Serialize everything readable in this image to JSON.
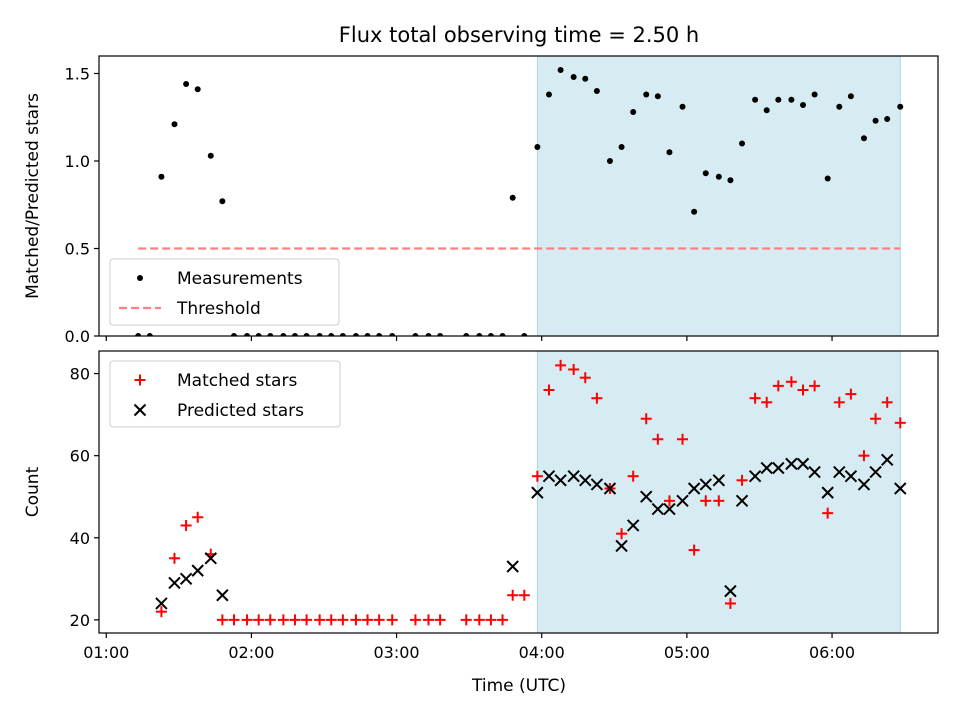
{
  "figure": {
    "title": "Flux total observing time = 2.50 h",
    "xlabel": "Time (UTC)",
    "xticks": [
      "01:00",
      "02:00",
      "03:00",
      "04:00",
      "05:00",
      "06:00"
    ]
  },
  "colors": {
    "shade": "#add8e6",
    "threshold": "#ff8080",
    "matched": "#ff0000",
    "predicted": "#000000",
    "measurements": "#000000"
  },
  "chart_data": [
    {
      "type": "scatter",
      "ylabel": "Matched/Predicted stars",
      "xlim": [
        0.95,
        6.73
      ],
      "ylim": [
        0.0,
        1.6
      ],
      "yticks": [
        0.0,
        0.5,
        1.0,
        1.5
      ],
      "ytick_labels": [
        "0.0",
        "0.5",
        "1.0",
        "1.5"
      ],
      "shaded_region": [
        3.97,
        6.47
      ],
      "threshold": {
        "name": "Threshold",
        "value": 0.5,
        "x_range": [
          1.22,
          6.47
        ]
      },
      "legend": {
        "placement": "lower-left",
        "entries": [
          "Measurements",
          "Threshold"
        ]
      },
      "series": [
        {
          "name": "Measurements",
          "x": [
            1.22,
            1.3,
            1.38,
            1.47,
            1.55,
            1.63,
            1.72,
            1.8,
            1.88,
            1.97,
            2.05,
            2.13,
            2.22,
            2.3,
            2.38,
            2.47,
            2.55,
            2.63,
            2.72,
            2.8,
            2.88,
            2.97,
            3.13,
            3.22,
            3.3,
            3.48,
            3.57,
            3.65,
            3.73,
            3.8,
            3.88,
            3.97,
            4.05,
            4.13,
            4.22,
            4.3,
            4.38,
            4.47,
            4.55,
            4.63,
            4.72,
            4.8,
            4.88,
            4.97,
            5.05,
            5.13,
            5.22,
            5.3,
            5.38,
            5.47,
            5.55,
            5.63,
            5.72,
            5.8,
            5.88,
            5.97,
            6.05,
            6.13,
            6.22,
            6.3,
            6.38,
            6.47
          ],
          "y": [
            0,
            0,
            0.91,
            1.21,
            1.44,
            1.41,
            1.03,
            0.77,
            0,
            0,
            0,
            0,
            0,
            0,
            0,
            0,
            0,
            0,
            0,
            0,
            0,
            0,
            0,
            0,
            0,
            0,
            0,
            0,
            0,
            0.79,
            0,
            1.08,
            1.38,
            1.52,
            1.48,
            1.47,
            1.4,
            1.0,
            1.08,
            1.28,
            1.38,
            1.37,
            1.05,
            1.31,
            0.71,
            0.93,
            0.91,
            0.89,
            1.1,
            1.35,
            1.29,
            1.35,
            1.35,
            1.32,
            1.38,
            0.9,
            1.31,
            1.37,
            1.13,
            1.23,
            1.24,
            1.31
          ]
        }
      ]
    },
    {
      "type": "scatter",
      "ylabel": "Count",
      "xlabel": "Time (UTC)",
      "xlim": [
        0.95,
        6.73
      ],
      "ylim": [
        16.8,
        85.5
      ],
      "yticks": [
        20,
        40,
        60,
        80
      ],
      "ytick_labels": [
        "20",
        "40",
        "60",
        "80"
      ],
      "shaded_region": [
        3.97,
        6.47
      ],
      "legend": {
        "placement": "top-left",
        "entries": [
          "Matched stars",
          "Predicted stars"
        ]
      },
      "series": [
        {
          "name": "Matched stars",
          "marker": "plus",
          "x": [
            1.22,
            1.3,
            1.38,
            1.47,
            1.55,
            1.63,
            1.72,
            1.8,
            1.88,
            1.97,
            2.05,
            2.13,
            2.22,
            2.3,
            2.38,
            2.47,
            2.55,
            2.63,
            2.72,
            2.8,
            2.88,
            2.97,
            3.13,
            3.22,
            3.3,
            3.48,
            3.57,
            3.65,
            3.73,
            3.8,
            3.88,
            3.97,
            4.05,
            4.13,
            4.22,
            4.3,
            4.38,
            4.47,
            4.55,
            4.63,
            4.72,
            4.8,
            4.88,
            4.97,
            5.05,
            5.13,
            5.22,
            5.3,
            5.38,
            5.47,
            5.55,
            5.63,
            5.72,
            5.8,
            5.88,
            5.97,
            6.05,
            6.13,
            6.22,
            6.3,
            6.38,
            6.47
          ],
          "y": [
            null,
            null,
            22,
            35,
            43,
            45,
            36,
            20,
            20,
            20,
            20,
            20,
            20,
            20,
            20,
            20,
            20,
            20,
            20,
            20,
            20,
            20,
            20,
            20,
            20,
            20,
            20,
            20,
            20,
            26,
            26,
            55,
            76,
            82,
            81,
            79,
            74,
            52,
            41,
            55,
            69,
            64,
            49,
            64,
            37,
            49,
            49,
            24,
            54,
            74,
            73,
            77,
            78,
            76,
            77,
            46,
            73,
            75,
            60,
            69,
            73,
            68
          ]
        },
        {
          "name": "Predicted stars",
          "marker": "x",
          "x": [
            1.38,
            1.47,
            1.55,
            1.63,
            1.72,
            1.8,
            3.8,
            3.97,
            4.05,
            4.13,
            4.22,
            4.3,
            4.38,
            4.47,
            4.55,
            4.63,
            4.72,
            4.8,
            4.88,
            4.97,
            5.05,
            5.13,
            5.22,
            5.3,
            5.38,
            5.47,
            5.55,
            5.63,
            5.72,
            5.8,
            5.88,
            5.97,
            6.05,
            6.13,
            6.22,
            6.3,
            6.38,
            6.47
          ],
          "y": [
            24,
            29,
            30,
            32,
            35,
            26,
            33,
            51,
            55,
            54,
            55,
            54,
            53,
            52,
            38,
            43,
            50,
            47,
            47,
            49,
            52,
            53,
            54,
            27,
            49,
            55,
            57,
            57,
            58,
            58,
            56,
            51,
            56,
            55,
            53,
            56,
            59,
            52
          ]
        }
      ]
    }
  ]
}
